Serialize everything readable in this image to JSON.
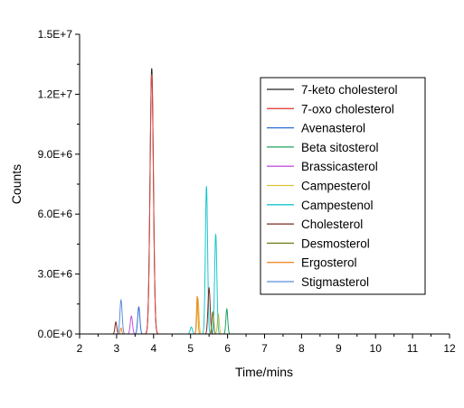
{
  "chart_data": {
    "type": "line",
    "title": "",
    "xlabel": "Time/mins",
    "ylabel": "Counts",
    "xlim": [
      2,
      12
    ],
    "ylim": [
      0,
      15000000
    ],
    "x_ticks": [
      "2",
      "3",
      "4",
      "5",
      "6",
      "7",
      "8",
      "9",
      "10",
      "11",
      "12"
    ],
    "y_ticks": [
      "0.0E+0",
      "3.0E+6",
      "6.0E+6",
      "9.0E+6",
      "1.2E+7",
      "1.5E+7"
    ],
    "grid": false,
    "legend_position": "top-right",
    "series": [
      {
        "name": "7-keto cholesterol",
        "color": "#222222",
        "peaks": [
          {
            "x": 3.95,
            "y": 13300000,
            "w": 0.045
          }
        ]
      },
      {
        "name": "7-oxo cholesterol",
        "color": "#e0473c",
        "peaks": [
          {
            "x": 3.95,
            "y": 13000000,
            "w": 0.045
          }
        ]
      },
      {
        "name": "Avenasterol",
        "color": "#2f6bd6",
        "peaks": [
          {
            "x": 3.6,
            "y": 1350000,
            "w": 0.03
          }
        ]
      },
      {
        "name": "Beta sitosterol",
        "color": "#20a060",
        "peaks": [
          {
            "x": 5.98,
            "y": 1250000,
            "w": 0.025
          }
        ]
      },
      {
        "name": "Brassicasterol",
        "color": "#c455d9",
        "peaks": [
          {
            "x": 3.4,
            "y": 900000,
            "w": 0.03
          }
        ]
      },
      {
        "name": "Campesterol",
        "color": "#d9c13a",
        "peaks": [
          {
            "x": 5.2,
            "y": 1800000,
            "w": 0.025
          },
          {
            "x": 5.75,
            "y": 1000000,
            "w": 0.025
          }
        ]
      },
      {
        "name": "Campestenol",
        "color": "#19c6cc",
        "peaks": [
          {
            "x": 5.43,
            "y": 7400000,
            "w": 0.03
          },
          {
            "x": 5.68,
            "y": 5000000,
            "w": 0.03
          },
          {
            "x": 5.02,
            "y": 350000,
            "w": 0.03
          }
        ]
      },
      {
        "name": "Cholesterol",
        "color": "#7a2a22",
        "peaks": [
          {
            "x": 2.98,
            "y": 600000,
            "w": 0.025
          },
          {
            "x": 5.5,
            "y": 2300000,
            "w": 0.03
          }
        ]
      },
      {
        "name": "Desmosterol",
        "color": "#6f7a1a",
        "peaks": [
          {
            "x": 5.6,
            "y": 1100000,
            "w": 0.025
          }
        ]
      },
      {
        "name": "Ergosterol",
        "color": "#f08a2a",
        "peaks": [
          {
            "x": 5.18,
            "y": 1900000,
            "w": 0.02
          },
          {
            "x": 3.12,
            "y": 300000,
            "w": 0.02
          }
        ]
      },
      {
        "name": "Stigmasterol",
        "color": "#5b8ed9",
        "peaks": [
          {
            "x": 3.12,
            "y": 1700000,
            "w": 0.03
          }
        ]
      }
    ]
  }
}
